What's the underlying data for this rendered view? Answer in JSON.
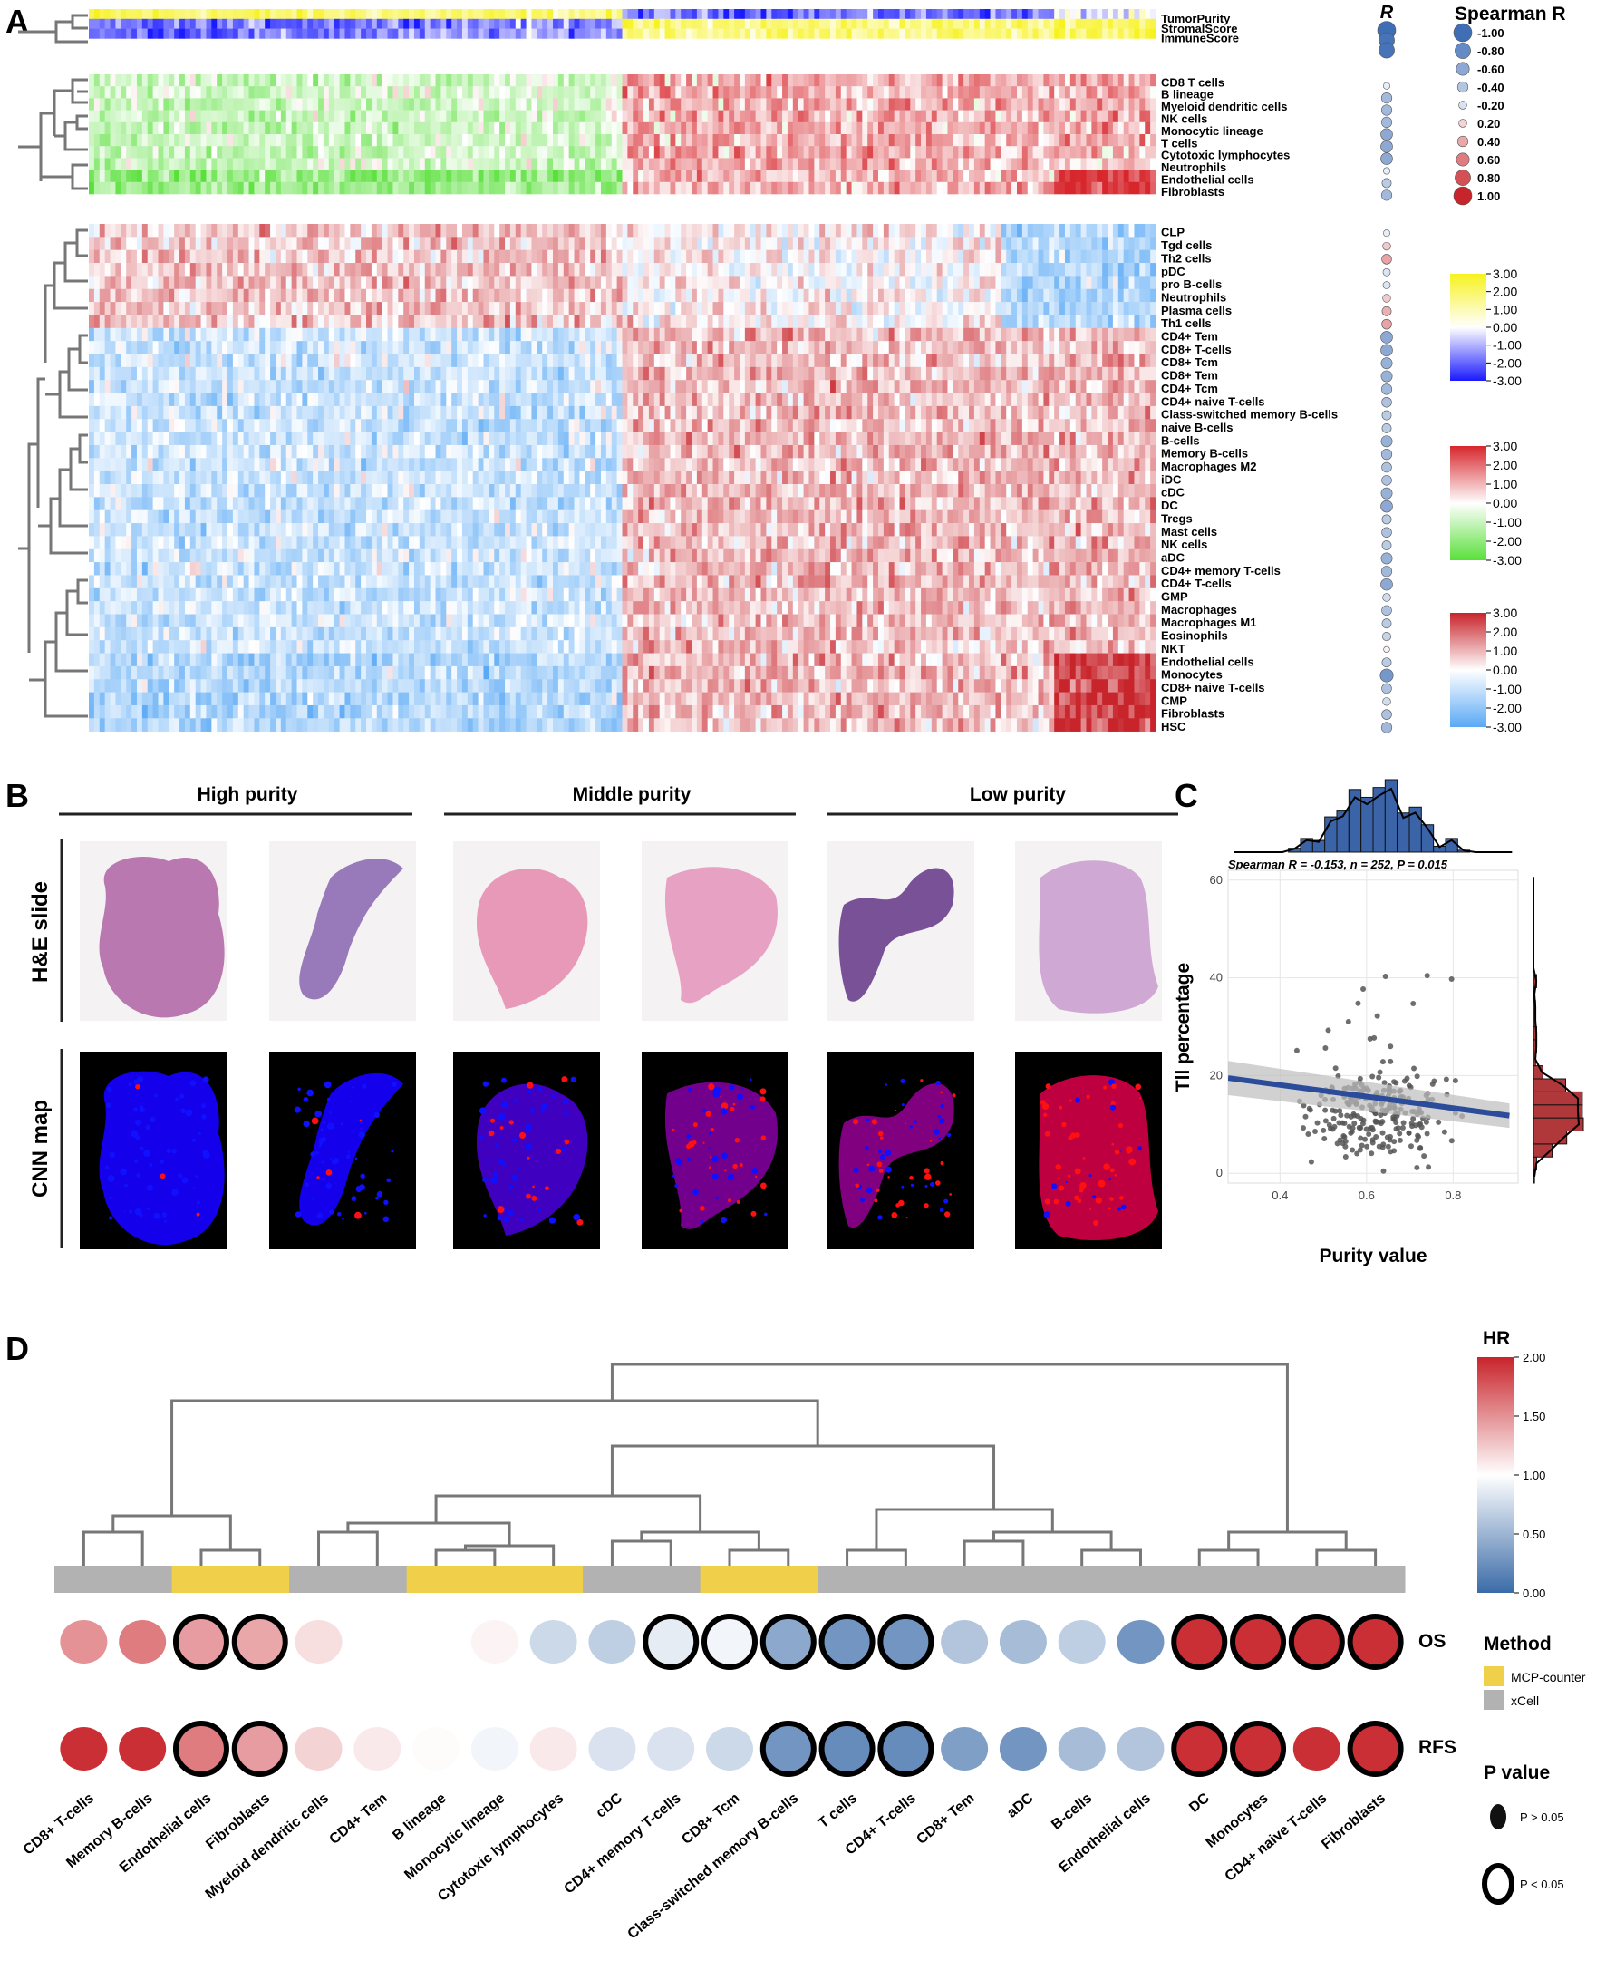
{
  "panels": {
    "A": {
      "letter": "A",
      "r_header": "R",
      "spearman_title": "Spearman R",
      "spearman_legend": [
        "-1.00",
        "-0.80",
        "-0.60",
        "-0.40",
        "-0.20",
        "0.20",
        "0.40",
        "0.60",
        "0.80",
        "1.00"
      ],
      "score_rows": [
        "TumorPurity",
        "StromalScore",
        "ImmuneScore"
      ],
      "mcp_rows": [
        "CD8 T cells",
        "B lineage",
        "Myeloid dendritic cells",
        "NK cells",
        "Monocytic lineage",
        "T cells",
        "Cytotoxic lymphocytes",
        "Neutrophils",
        "Endothelial cells",
        "Fibroblasts"
      ],
      "xcell_rows": [
        "CLP",
        "Tgd cells",
        "Th2 cells",
        "pDC",
        "pro B-cells",
        "Neutrophils",
        "Plasma cells",
        "Th1 cells",
        "CD4+ Tem",
        "CD8+ T-cells",
        "CD8+ Tcm",
        "CD8+ Tem",
        "CD4+ Tcm",
        "CD4+ naive T-cells",
        "Class-switched memory B-cells",
        "naive B-cells",
        "B-cells",
        "Memory B-cells",
        "Macrophages M2",
        "iDC",
        "cDC",
        "DC",
        "Tregs",
        "Mast cells",
        "NK cells",
        "aDC",
        "CD4+ memory T-cells",
        "CD4+ T-cells",
        "GMP",
        "Macrophages",
        "Macrophages M1",
        "Eosinophils",
        "NKT",
        "Endothelial cells",
        "Monocytes",
        "CD8+ naive T-cells",
        "CMP",
        "Fibroblasts",
        "HSC"
      ],
      "scale_score": [
        "3.00",
        "2.00",
        "1.00",
        "0.00",
        "-1.00",
        "-2.00",
        "-3.00"
      ],
      "scale_mcp": [
        "3.00",
        "2.00",
        "1.00",
        "0.00",
        "-1.00",
        "-2.00",
        "-3.00"
      ],
      "scale_xcell": [
        "3.00",
        "2.00",
        "1.00",
        "0.00",
        "-1.00",
        "-2.00",
        "-3.00"
      ],
      "colors": {
        "yellow": "#f7f21e",
        "blue": "#1a1aff",
        "red": "#d7262c",
        "green": "#59e03a",
        "lightblue": "#5aa9f5"
      },
      "r_score": [
        -1.0,
        -0.8,
        -0.8
      ],
      "r_mcp": [
        -0.1,
        -0.4,
        -0.4,
        -0.4,
        -0.5,
        -0.5,
        -0.5,
        -0.1,
        -0.3,
        -0.4
      ],
      "r_xcell": [
        -0.1,
        0.2,
        0.35,
        -0.15,
        -0.15,
        0.2,
        0.3,
        0.35,
        -0.5,
        -0.5,
        -0.45,
        -0.45,
        -0.4,
        -0.35,
        -0.3,
        -0.3,
        -0.45,
        -0.4,
        -0.35,
        -0.35,
        -0.45,
        -0.5,
        -0.3,
        -0.35,
        -0.3,
        -0.45,
        -0.4,
        -0.5,
        -0.2,
        -0.35,
        -0.3,
        -0.25,
        0.05,
        -0.3,
        -0.6,
        -0.35,
        -0.2,
        -0.35,
        -0.4
      ]
    },
    "B": {
      "letter": "B",
      "groups": [
        "High purity",
        "Middle purity",
        "Low purity"
      ],
      "row_labels": [
        "H&E slide",
        "CNN map"
      ]
    },
    "C": {
      "letter": "C",
      "annotation": "Spearman R = -0.153, n = 252,  P = 0.015",
      "colors": {
        "line": "#2b4c9b",
        "top_hist": "#3a63a8",
        "right_hist": "#b0383a"
      }
    },
    "D": {
      "letter": "D",
      "hr_title": "HR",
      "hr_ticks": [
        "2.00",
        "1.50",
        "1.00",
        "0.50",
        "0.00"
      ],
      "row_labels": [
        "OS",
        "RFS"
      ],
      "method_title": "Method",
      "method_items": [
        {
          "label": "MCP-counter",
          "color": "#f0cf4a"
        },
        {
          "label": "xCell",
          "color": "#b2b2b2"
        }
      ],
      "pvalue_title": "P value",
      "pvalue_items": [
        "P > 0.05",
        "P < 0.05"
      ],
      "cells": [
        "CD8+ T-cells",
        "Memory B-cells",
        "Endothelial cells",
        "Fibroblasts",
        "Myeloid dendritic cells",
        "CD4+ Tem",
        "B lineage",
        "Monocytic lineage",
        "Cytotoxic lymphocytes",
        "cDC",
        "CD4+ memory T-cells",
        "CD8+ Tcm",
        "Class-switched memory B-cells",
        "T cells",
        "CD4+ T-cells",
        "CD8+ Tem",
        "aDC",
        "B-cells",
        "Endothelial cells",
        "DC",
        "Monocytes",
        "CD4+ naive T-cells",
        "Fibroblasts"
      ],
      "method": [
        "x",
        "x",
        "m",
        "m",
        "x",
        "x",
        "m",
        "m",
        "m",
        "x",
        "x",
        "m",
        "m",
        "x",
        "x",
        "x",
        "x",
        "x",
        "x",
        "x",
        "x",
        "x",
        "x"
      ],
      "os_hr": [
        1.5,
        1.6,
        1.45,
        1.4,
        1.15,
        null,
        null,
        1.05,
        0.8,
        0.75,
        0.9,
        0.95,
        0.55,
        0.45,
        0.45,
        0.7,
        0.65,
        0.75,
        0.45,
        1.95,
        1.95,
        1.95,
        1.95
      ],
      "os_sig": [
        false,
        false,
        true,
        true,
        false,
        false,
        false,
        false,
        false,
        false,
        true,
        true,
        true,
        true,
        true,
        false,
        false,
        false,
        false,
        true,
        true,
        true,
        true
      ],
      "rfs_hr": [
        1.95,
        1.95,
        1.6,
        1.45,
        1.2,
        1.1,
        1.02,
        0.95,
        1.1,
        0.85,
        0.85,
        0.8,
        0.45,
        0.4,
        0.4,
        0.5,
        0.45,
        0.65,
        0.7,
        1.95,
        1.95,
        1.95,
        1.95
      ],
      "rfs_sig": [
        false,
        false,
        true,
        true,
        false,
        false,
        false,
        false,
        false,
        false,
        false,
        false,
        true,
        true,
        true,
        false,
        false,
        false,
        false,
        true,
        true,
        false,
        true
      ]
    }
  },
  "chart_data": {
    "type": "scatter",
    "title": "",
    "xlabel": "Purity value",
    "ylabel": "Tll percentage",
    "xlim": [
      0.28,
      0.95
    ],
    "ylim": [
      -2,
      62
    ],
    "xticks": [
      "0.4",
      "0.6",
      "0.8"
    ],
    "yticks": [
      "0",
      "20",
      "40",
      "60"
    ],
    "n": 252,
    "regression": {
      "x": [
        0.28,
        0.93
      ],
      "y": [
        19.5,
        11.8
      ]
    },
    "points_seed": 7
  }
}
